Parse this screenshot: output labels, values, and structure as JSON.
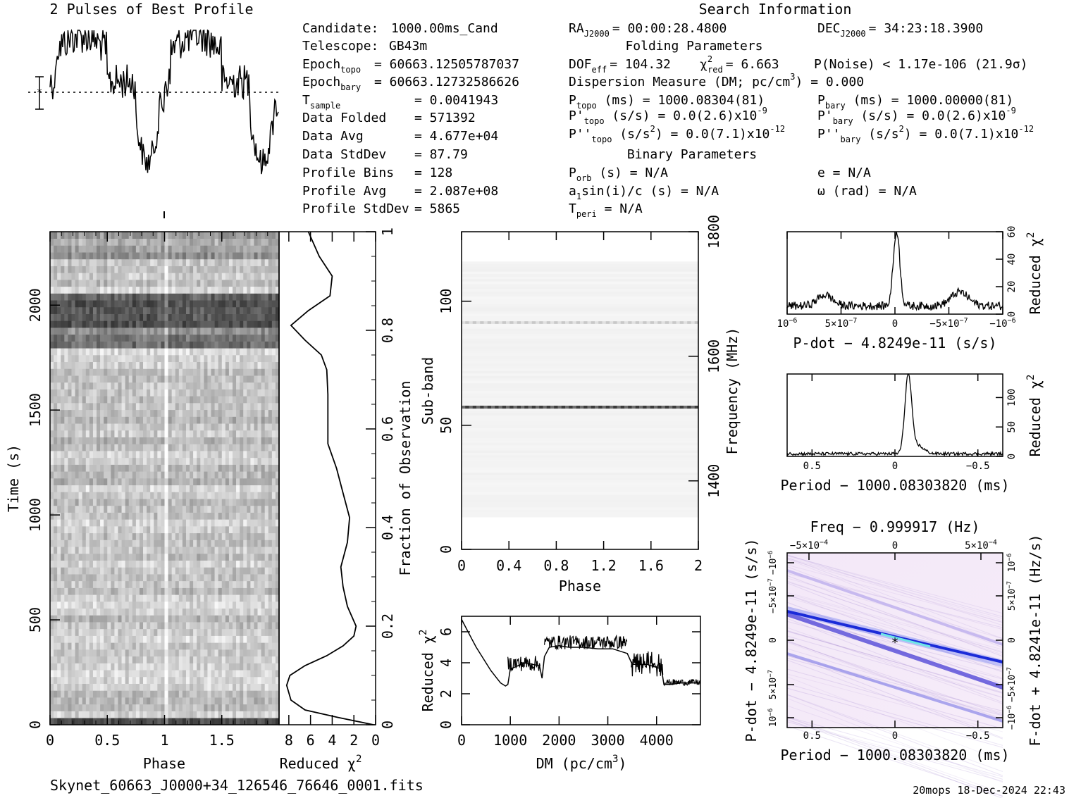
{
  "header": {
    "profile_title": "2 Pulses of Best Profile",
    "search_title": "Search Information"
  },
  "info_col1": [
    {
      "label": "Candidate:",
      "value": "1000.00ms_Cand"
    },
    {
      "label": "Telescope:",
      "value": "GB43m"
    },
    {
      "label": "Epoch",
      "sub": "topo",
      "value": "= 60663.12505787037"
    },
    {
      "label": "Epoch",
      "sub": "bary",
      "value": "= 60663.12732586626"
    },
    {
      "label": "T",
      "sub": "sample",
      "value": "=  0.0041943"
    },
    {
      "label": "Data Folded",
      "value": "=  571392"
    },
    {
      "label": "Data Avg",
      "value": "=  4.677e+04"
    },
    {
      "label": "Data StdDev",
      "value": "=  87.79"
    },
    {
      "label": "Profile Bins",
      "value": "=  128"
    },
    {
      "label": "Profile Avg",
      "value": "=  2.087e+08"
    },
    {
      "label": "Profile StdDev",
      "value": "=  5865"
    }
  ],
  "info_col2": {
    "ra": "RA",
    "ra_sub": "J2000",
    "ra_value": "= 00:00:28.4800",
    "dec": "DEC",
    "dec_sub": "J2000",
    "dec_value": "= 34:23:18.3900",
    "folding_title": "Folding Parameters",
    "dof": "DOF",
    "dof_sub": "eff",
    "dof_value": "= 104.32",
    "chi": "χ",
    "chi_sup": "2",
    "chi_sub": "red",
    "chi_value": "= 6.663",
    "pnoise": "P(Noise) < 1.17e-106   (21.9σ)",
    "dm": "Dispersion Measure (DM; pc/cm",
    "dm_sup": "3",
    "dm_value": ") = 0.000",
    "ptopo": "P",
    "ptopo_sub": "topo",
    "ptopo_value": " (ms) =  1000.08304(81)",
    "pbary": "P",
    "pbary_sub": "bary",
    "pbary_value": " (ms) =  1000.00000(81)",
    "pdtopo": "P'",
    "pdtopo_sub": "topo",
    "pdtopo_value": " (s/s) = 0.0(2.6)x10",
    "pdtopo_exp": "-9",
    "pdbary": "P'",
    "pdbary_sub": "bary",
    "pdbary_value": " (s/s) = 0.0(2.6)x10",
    "pdbary_exp": "-9",
    "pddtopo": "P''",
    "pddtopo_sub": "topo",
    "pddtopo_value": " (s/s",
    "pddtopo_sup": "2",
    "pddtopo_value2": ") = 0.0(7.1)x10",
    "pddtopo_exp": "-12",
    "pddbary": "P''",
    "pddbary_sub": "bary",
    "pddbary_value": " (s/s",
    "pddbary_sup": "2",
    "pddbary_value2": ") = 0.0(7.1)x10",
    "pddbary_exp": "-12",
    "binary_title": "Binary Parameters",
    "porb": "P",
    "porb_sub": "orb",
    "porb_value": " (s) = N/A",
    "ecc": "e = N/A",
    "asini": "a",
    "asini_sub": "1",
    "asini_value": "sin(i)/c (s) = N/A",
    "omega": "ω (rad) = N/A",
    "tperi": "T",
    "tperi_sub": "peri",
    "tperi_value": " = N/A"
  },
  "footer": {
    "filename": "Skynet_60663_J0000+34_126546_76646_0001.fits",
    "stamp": "20mops 18-Dec-2024 22:43"
  },
  "chart_data": [
    {
      "type": "line",
      "id": "profile",
      "title": "2 Pulses of Best Profile",
      "xlim": [
        0,
        2
      ],
      "description_of_shape": "noisy profile, high at phase 0.1-0.5 and 1.1-1.5, dips near 0.9 and 1.95"
    },
    {
      "type": "heatmap",
      "id": "time-phase",
      "xlabel": "Phase",
      "ylabel": "Time (s)",
      "xlim": [
        0,
        2
      ],
      "ylim": [
        0,
        2350
      ],
      "x_ticks": [
        "0",
        "0.5",
        "1",
        "1.5"
      ],
      "y_ticks": [
        "0",
        "500",
        "1000",
        "1500",
        "2000"
      ]
    },
    {
      "type": "line",
      "id": "time-chi",
      "xlabel": "Reduced χ2",
      "ylabel": "Fraction of Observation",
      "xlim": [
        8.9,
        0
      ],
      "ylim": [
        0,
        1
      ],
      "x_ticks": [
        "8",
        "6",
        "4",
        "2",
        "0"
      ],
      "y_ticks": [
        "0",
        "0.2",
        "0.4",
        "0.6",
        "0.8",
        "1"
      ],
      "x": [
        0.2,
        3.5,
        6.5,
        7.8,
        8.2,
        7.9,
        6.5,
        4.5,
        3.0,
        2.0,
        1.8,
        2.6,
        3.0,
        3.2,
        2.6,
        2.4,
        3.0,
        3.6,
        4.4,
        4.4,
        4.4,
        4.5,
        5.0,
        6.5,
        7.8,
        6.2,
        4.2,
        4.0,
        5.2,
        6.2
      ],
      "y": [
        0.0,
        0.015,
        0.03,
        0.05,
        0.08,
        0.1,
        0.12,
        0.14,
        0.16,
        0.18,
        0.2,
        0.24,
        0.28,
        0.32,
        0.37,
        0.42,
        0.47,
        0.52,
        0.57,
        0.62,
        0.67,
        0.72,
        0.75,
        0.78,
        0.81,
        0.84,
        0.87,
        0.91,
        0.95,
        1.0
      ]
    },
    {
      "type": "heatmap",
      "id": "subband-phase",
      "xlabel": "Phase",
      "ylabel": "Sub-band",
      "y2label": "Frequency (MHz)",
      "xlim": [
        0,
        2
      ],
      "ylim": [
        0,
        128
      ],
      "x_ticks": [
        "0",
        "0.4",
        "0.8",
        "1.2",
        "1.6",
        "2"
      ],
      "y_ticks": [
        "0",
        "50",
        "100"
      ],
      "y2_ticks": [
        "1400",
        "1600",
        "1800"
      ],
      "bright_band": 57,
      "faint_band": 91
    },
    {
      "type": "line",
      "id": "dm-chi",
      "xlabel": "DM (pc/cm3)",
      "ylabel": "Reduced χ2",
      "xlim": [
        0,
        4900
      ],
      "ylim": [
        0,
        7
      ],
      "x_ticks": [
        "0",
        "1000",
        "2000",
        "3000",
        "4000"
      ],
      "y_ticks": [
        "0",
        "2",
        "4",
        "6"
      ],
      "x": [
        0,
        100,
        200,
        300,
        400,
        500,
        600,
        700,
        800,
        900,
        950,
        1000,
        1300,
        1600,
        1650,
        1700,
        1800,
        2000,
        2200,
        2500,
        2800,
        3100,
        3400,
        3500,
        3800,
        4100,
        4150,
        4300,
        4500,
        4700,
        4900
      ],
      "y": [
        6.8,
        6.2,
        5.6,
        5.0,
        4.5,
        4.0,
        3.5,
        3.1,
        2.7,
        2.5,
        2.6,
        3.6,
        4.0,
        3.8,
        3.0,
        4.4,
        5.0,
        5.1,
        5.0,
        5.0,
        4.9,
        4.9,
        4.6,
        3.9,
        3.9,
        3.6,
        2.6,
        2.6,
        2.7,
        2.7,
        2.7
      ]
    },
    {
      "type": "line",
      "id": "pdot-chi",
      "xlabel": "P-dot − 4.8249e-11 (s/s)",
      "ylabel": "Reduced χ2",
      "xlim": [
        1e-06,
        -1e-06
      ],
      "ylim": [
        0,
        60
      ],
      "x_ticks": [
        "10",
        "5×10",
        "0",
        "−5×10",
        "−10"
      ],
      "y_ticks": [
        "0",
        "20",
        "40",
        "60"
      ],
      "peak_x": -1.5e-08,
      "peak_y": 55
    },
    {
      "type": "line",
      "id": "period-chi",
      "xlabel": "Period − 1000.08303820 (ms)",
      "ylabel": "Reduced χ2",
      "xlim": [
        0.65,
        -0.65
      ],
      "ylim": [
        0,
        140
      ],
      "x_ticks": [
        "0.5",
        "0",
        "−0.5"
      ],
      "y_ticks": [
        "0",
        "50",
        "100"
      ],
      "peak_x": -0.08,
      "peak_y": 130
    },
    {
      "type": "heatmap",
      "id": "period-pdot",
      "title": "Freq − 0.999917 (Hz)",
      "xlabel": "Period − 1000.08303820 (ms)",
      "ylabel": "P-dot − 4.8249e-11 (s/s)",
      "y2label": "F-dot + 4.8241e-11 (Hz/s)",
      "x_ticks": [
        "0.5",
        "0",
        "−0.5"
      ],
      "top_ticks": [
        "−5×10",
        "0",
        "5×10"
      ],
      "y_ticks": [
        "10",
        "5×10",
        "0",
        "−5×10",
        "−10"
      ],
      "y2_ticks": [
        "10",
        "5×10",
        "0",
        "−5×10",
        "−10"
      ]
    }
  ],
  "axis_text": {
    "phase": "Phase",
    "time": "Time (s)",
    "reduced": "Reduced χ",
    "sup2": "2",
    "fraction": "Fraction of Observation",
    "subband": "Sub-band",
    "frequency": "Frequency (MHz)",
    "dm": "DM (pc/cm",
    "dm_sup": "3",
    "dm_close": ")",
    "pdot_x": "P-dot − 4.8249e-11 (s/s)",
    "period_x": "Period − 1000.08303820 (ms)",
    "freq_top": "Freq − 0.999917 (Hz)",
    "pdot_y": "P-dot − 4.8249e-11 (s/s)",
    "fdot_y": "F-dot + 4.8241e-11 (Hz/s)",
    "exp_m6": "−6",
    "exp_m7": "−7",
    "exp_m4": "−4"
  }
}
